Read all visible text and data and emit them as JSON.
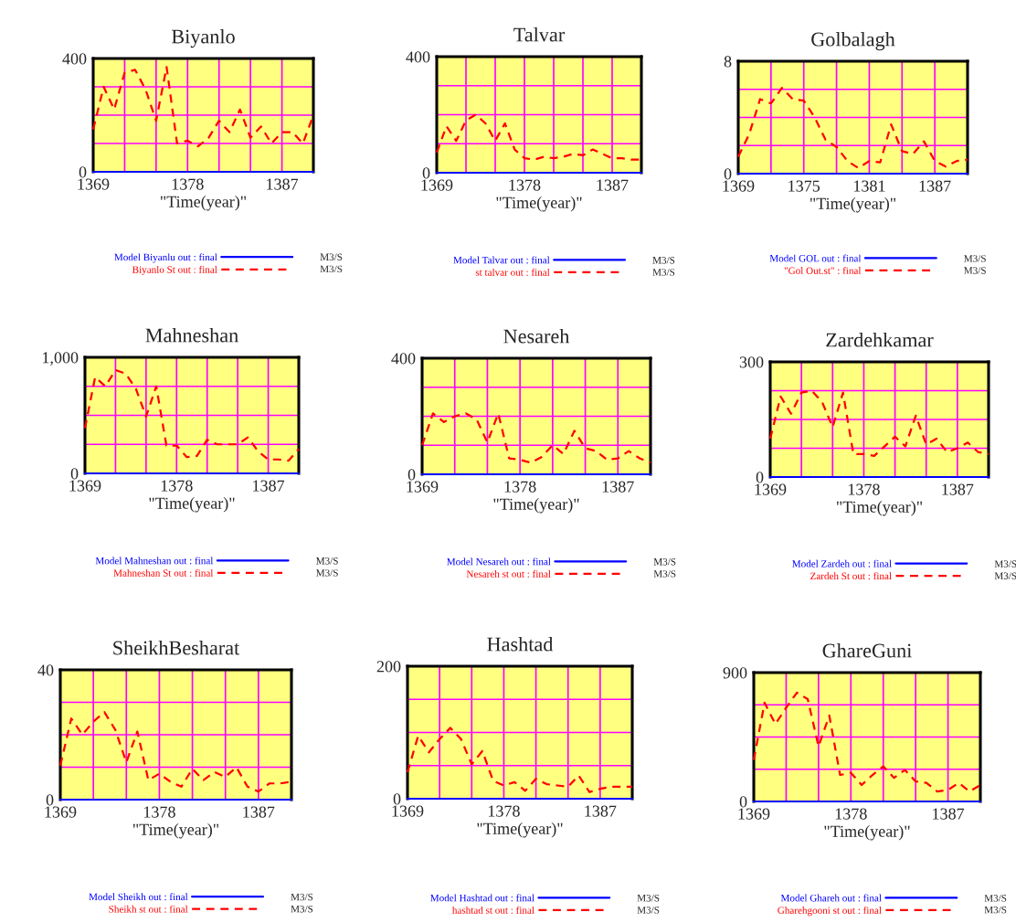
{
  "chart_data": [
    {
      "type": "line",
      "title": "Biyanlo",
      "xlabel": "\"Time(year)\"",
      "legend": "bottom",
      "grid": true,
      "xlim": [
        1369,
        1390
      ],
      "ylim": [
        0,
        400
      ],
      "xticks": [
        1369,
        {
          "value": 1372,
          "label": null
        },
        {
          "value": 1375,
          "label": null
        },
        1378,
        {
          "value": 1381,
          "label": null
        },
        {
          "value": 1384,
          "label": null
        },
        1387,
        {
          "value": 1390,
          "label": null
        }
      ],
      "yticks": [
        0,
        {
          "value": 100,
          "label": null
        },
        {
          "value": 200,
          "label": null
        },
        {
          "value": 300,
          "label": null
        },
        400
      ],
      "x": [
        1369,
        1370,
        1371,
        1372,
        1373,
        1374,
        1375,
        1376,
        1377,
        1378,
        1379,
        1380,
        1381,
        1382,
        1383,
        1384,
        1385,
        1386,
        1387,
        1388,
        1389,
        1390
      ],
      "series": [
        {
          "name": "Model Biyanlu out : final",
          "color": "#0000ff",
          "line_style": "solid",
          "values": [
            0,
            0,
            0,
            0,
            0,
            0,
            0,
            0,
            0,
            0,
            0,
            0,
            0,
            0,
            0,
            0,
            0,
            0,
            0,
            0,
            0,
            0
          ]
        },
        {
          "name": "Biyanlo St out : final",
          "color": "#ff0000",
          "line_style": "dashed",
          "values": [
            150,
            300,
            220,
            350,
            360,
            290,
            180,
            370,
            100,
            110,
            90,
            120,
            180,
            140,
            220,
            120,
            160,
            100,
            140,
            140,
            100,
            200
          ]
        }
      ],
      "annotations": [
        "M3/S",
        "M3/S"
      ]
    },
    {
      "type": "line",
      "title": "Talvar",
      "xlabel": "\"Time(year)\"",
      "legend": "bottom",
      "grid": true,
      "xlim": [
        1369,
        1390
      ],
      "ylim": [
        0,
        400
      ],
      "xticks": [
        1369,
        {
          "value": 1372,
          "label": null
        },
        {
          "value": 1375,
          "label": null
        },
        1378,
        {
          "value": 1381,
          "label": null
        },
        {
          "value": 1384,
          "label": null
        },
        1387,
        {
          "value": 1390,
          "label": null
        }
      ],
      "yticks": [
        0,
        {
          "value": 100,
          "label": null
        },
        {
          "value": 200,
          "label": null
        },
        {
          "value": 300,
          "label": null
        },
        400
      ],
      "x": [
        1369,
        1370,
        1371,
        1372,
        1373,
        1374,
        1375,
        1376,
        1377,
        1378,
        1379,
        1380,
        1381,
        1382,
        1383,
        1384,
        1385,
        1386,
        1387,
        1388,
        1389,
        1390
      ],
      "series": [
        {
          "name": "Model Talvar out : final",
          "color": "#0000ff",
          "line_style": "solid",
          "values": [
            0,
            0,
            0,
            0,
            0,
            0,
            0,
            0,
            0,
            0,
            0,
            0,
            0,
            0,
            0,
            0,
            0,
            0,
            0,
            0,
            0,
            0
          ]
        },
        {
          "name": "st talvar out : final",
          "color": "#ff0000",
          "line_style": "dashed",
          "values": [
            70,
            160,
            110,
            180,
            200,
            170,
            110,
            170,
            80,
            50,
            45,
            55,
            50,
            55,
            65,
            60,
            80,
            65,
            50,
            50,
            45,
            45
          ]
        }
      ],
      "annotations": [
        "M3/S",
        "M3/S"
      ]
    },
    {
      "type": "line",
      "title": "Golbalagh",
      "xlabel": "\"Time(year)\"",
      "legend": "bottom",
      "grid": true,
      "xlim": [
        1369,
        1390
      ],
      "ylim": [
        0,
        8
      ],
      "xticks": [
        1369,
        {
          "value": 1372,
          "label": null
        },
        1375,
        {
          "value": 1378,
          "label": null
        },
        1381,
        {
          "value": 1384,
          "label": null
        },
        1387,
        {
          "value": 1390,
          "label": null
        }
      ],
      "yticks": [
        0,
        {
          "value": 2,
          "label": null
        },
        {
          "value": 4,
          "label": null
        },
        {
          "value": 6,
          "label": null
        },
        8
      ],
      "x": [
        1369,
        1370,
        1371,
        1372,
        1373,
        1374,
        1375,
        1376,
        1377,
        1378,
        1379,
        1380,
        1381,
        1382,
        1383,
        1384,
        1385,
        1386,
        1387,
        1388,
        1389,
        1390
      ],
      "series": [
        {
          "name": "Model GOL out : final",
          "color": "#0000ff",
          "line_style": "solid",
          "values": [
            0,
            0,
            0,
            0,
            0,
            0,
            0,
            0,
            0,
            0,
            0,
            0,
            0,
            0,
            0,
            0,
            0,
            0,
            0,
            0,
            0,
            0
          ]
        },
        {
          "name": "\"Gol Out.st\" : final",
          "color": "#ff0000",
          "line_style": "dashed",
          "values": [
            1.2,
            2.8,
            5.3,
            5.0,
            6.1,
            5.3,
            5.2,
            4.0,
            2.4,
            1.9,
            0.9,
            0.4,
            0.9,
            0.8,
            3.5,
            1.6,
            1.4,
            2.3,
            0.9,
            0.5,
            0.9,
            1.0
          ]
        }
      ],
      "annotations": [
        "M3/S",
        "M3/S"
      ]
    },
    {
      "type": "line",
      "title": "Mahneshan",
      "xlabel": "\"Time(year)\"",
      "legend": "bottom",
      "grid": true,
      "xlim": [
        1369,
        1390
      ],
      "ylim": [
        0,
        1000
      ],
      "xticks": [
        1369,
        {
          "value": 1372,
          "label": null
        },
        {
          "value": 1375,
          "label": null
        },
        1378,
        {
          "value": 1381,
          "label": null
        },
        {
          "value": 1384,
          "label": null
        },
        1387,
        {
          "value": 1390,
          "label": null
        }
      ],
      "yticks": [
        0,
        {
          "value": 250,
          "label": null
        },
        {
          "value": 500,
          "label": null
        },
        {
          "value": 750,
          "label": null
        },
        {
          "value": 1000,
          "label": "1,000"
        }
      ],
      "x": [
        1369,
        1370,
        1371,
        1372,
        1373,
        1374,
        1375,
        1376,
        1377,
        1378,
        1379,
        1380,
        1381,
        1382,
        1383,
        1384,
        1385,
        1386,
        1387,
        1388,
        1389,
        1390
      ],
      "series": [
        {
          "name": "Model Mahneshan out : final",
          "color": "#0000ff",
          "line_style": "solid",
          "values": [
            0,
            0,
            0,
            0,
            0,
            0,
            0,
            0,
            0,
            0,
            0,
            0,
            0,
            0,
            0,
            0,
            0,
            0,
            0,
            0,
            0,
            0
          ]
        },
        {
          "name": "Mahneshan St out : final",
          "color": "#ff0000",
          "line_style": "dashed",
          "values": [
            390,
            830,
            750,
            890,
            860,
            730,
            490,
            750,
            240,
            240,
            140,
            150,
            290,
            250,
            250,
            250,
            310,
            190,
            120,
            120,
            110,
            210
          ]
        }
      ],
      "annotations": [
        "M3/S",
        "M3/S"
      ]
    },
    {
      "type": "line",
      "title": "Nesareh",
      "xlabel": "\"Time(year)\"",
      "legend": "bottom",
      "grid": true,
      "xlim": [
        1369,
        1390
      ],
      "ylim": [
        0,
        400
      ],
      "xticks": [
        1369,
        {
          "value": 1372,
          "label": null
        },
        {
          "value": 1375,
          "label": null
        },
        1378,
        {
          "value": 1381,
          "label": null
        },
        {
          "value": 1384,
          "label": null
        },
        1387,
        {
          "value": 1390,
          "label": null
        }
      ],
      "yticks": [
        0,
        {
          "value": 100,
          "label": null
        },
        {
          "value": 200,
          "label": null
        },
        {
          "value": 300,
          "label": null
        },
        400
      ],
      "x": [
        1369,
        1370,
        1371,
        1372,
        1373,
        1374,
        1375,
        1376,
        1377,
        1378,
        1379,
        1380,
        1381,
        1382,
        1383,
        1384,
        1385,
        1386,
        1387,
        1388,
        1389,
        1390
      ],
      "series": [
        {
          "name": "Model Nesareh out : final",
          "color": "#0000ff",
          "line_style": "solid",
          "values": [
            0,
            0,
            0,
            0,
            0,
            0,
            0,
            0,
            0,
            0,
            0,
            0,
            0,
            0,
            0,
            0,
            0,
            0,
            0,
            0,
            0,
            0
          ]
        },
        {
          "name": "Nesareh st out : final",
          "color": "#ff0000",
          "line_style": "dashed",
          "values": [
            100,
            210,
            180,
            200,
            210,
            190,
            110,
            210,
            55,
            50,
            40,
            60,
            100,
            70,
            150,
            90,
            80,
            50,
            55,
            80,
            55,
            40
          ]
        }
      ],
      "annotations": [
        "M3/S",
        "M3/S"
      ]
    },
    {
      "type": "line",
      "title": "Zardehkamar",
      "xlabel": "\"Time(year)\"",
      "legend": "bottom",
      "grid": true,
      "xlim": [
        1369,
        1390
      ],
      "ylim": [
        0,
        300
      ],
      "xticks": [
        1369,
        {
          "value": 1372,
          "label": null
        },
        {
          "value": 1375,
          "label": null
        },
        1378,
        {
          "value": 1381,
          "label": null
        },
        {
          "value": 1384,
          "label": null
        },
        1387,
        {
          "value": 1390,
          "label": null
        }
      ],
      "yticks": [
        0,
        {
          "value": 75,
          "label": null
        },
        {
          "value": 150,
          "label": null
        },
        {
          "value": 225,
          "label": null
        },
        300
      ],
      "x": [
        1369,
        1370,
        1371,
        1372,
        1373,
        1374,
        1375,
        1376,
        1377,
        1378,
        1379,
        1380,
        1381,
        1382,
        1383,
        1384,
        1385,
        1386,
        1387,
        1388,
        1389,
        1390
      ],
      "series": [
        {
          "name": "Model Zardeh out : final",
          "color": "#0000ff",
          "line_style": "solid",
          "values": [
            0,
            0,
            0,
            0,
            0,
            0,
            0,
            0,
            0,
            0,
            0,
            0,
            0,
            0,
            0,
            0,
            0,
            0,
            0,
            0,
            0,
            0
          ]
        },
        {
          "name": "Zardeh St out : final",
          "color": "#ff0000",
          "line_style": "dashed",
          "values": [
            100,
            210,
            165,
            220,
            225,
            195,
            130,
            220,
            60,
            60,
            55,
            80,
            105,
            80,
            160,
            85,
            100,
            65,
            75,
            90,
            65,
            60
          ]
        }
      ],
      "annotations": [
        "M3/S",
        "M3/S"
      ]
    },
    {
      "type": "line",
      "title": "SheikhBesharat",
      "xlabel": "\"Time(year)\"",
      "legend": "bottom",
      "grid": true,
      "xlim": [
        1369,
        1390
      ],
      "ylim": [
        0,
        40
      ],
      "xticks": [
        1369,
        {
          "value": 1372,
          "label": null
        },
        {
          "value": 1375,
          "label": null
        },
        1378,
        {
          "value": 1381,
          "label": null
        },
        {
          "value": 1384,
          "label": null
        },
        1387,
        {
          "value": 1390,
          "label": null
        }
      ],
      "yticks": [
        0,
        {
          "value": 10,
          "label": null
        },
        {
          "value": 20,
          "label": null
        },
        {
          "value": 30,
          "label": null
        },
        40
      ],
      "x": [
        1369,
        1370,
        1371,
        1372,
        1373,
        1374,
        1375,
        1376,
        1377,
        1378,
        1379,
        1380,
        1381,
        1382,
        1383,
        1384,
        1385,
        1386,
        1387,
        1388,
        1389,
        1390
      ],
      "series": [
        {
          "name": "Model Sheikh out : final",
          "color": "#0000ff",
          "line_style": "solid",
          "values": [
            0,
            0,
            0,
            0,
            0,
            0,
            0,
            0,
            0,
            0,
            0,
            0,
            0,
            0,
            0,
            0,
            0,
            0,
            0,
            0,
            0,
            0
          ]
        },
        {
          "name": "Sheikh st out : final",
          "color": "#ff0000",
          "line_style": "dashed",
          "values": [
            10.5,
            25,
            20,
            24,
            27,
            21.5,
            11.5,
            21,
            6,
            8,
            5.5,
            4,
            9.5,
            6,
            8.5,
            7,
            10,
            4,
            2.5,
            5,
            5,
            5.5
          ]
        }
      ],
      "annotations": [
        "M3/S",
        "M3/S"
      ]
    },
    {
      "type": "line",
      "title": "Hashtad",
      "xlabel": "\"Time(year)\"",
      "legend": "bottom",
      "grid": true,
      "xlim": [
        1369,
        1390
      ],
      "ylim": [
        0,
        200
      ],
      "xticks": [
        1369,
        {
          "value": 1372,
          "label": null
        },
        {
          "value": 1375,
          "label": null
        },
        1378,
        {
          "value": 1381,
          "label": null
        },
        {
          "value": 1384,
          "label": null
        },
        1387,
        {
          "value": 1390,
          "label": null
        }
      ],
      "yticks": [
        0,
        {
          "value": 50,
          "label": null
        },
        {
          "value": 100,
          "label": null
        },
        {
          "value": 150,
          "label": null
        },
        200
      ],
      "x": [
        1369,
        1370,
        1371,
        1372,
        1373,
        1374,
        1375,
        1376,
        1377,
        1378,
        1379,
        1380,
        1381,
        1382,
        1383,
        1384,
        1385,
        1386,
        1387,
        1388,
        1389,
        1390
      ],
      "series": [
        {
          "name": "Model Hashtad out : final",
          "color": "#0000ff",
          "line_style": "solid",
          "values": [
            0,
            0,
            0,
            0,
            0,
            0,
            0,
            0,
            0,
            0,
            0,
            0,
            0,
            0,
            0,
            0,
            0,
            0,
            0,
            0,
            0,
            0
          ]
        },
        {
          "name": "hashtad st out : final",
          "color": "#ff0000",
          "line_style": "dashed",
          "values": [
            40,
            95,
            70,
            90,
            107,
            90,
            52,
            72,
            27,
            20,
            25,
            12,
            30,
            22,
            20,
            18,
            35,
            10,
            15,
            18,
            18,
            18
          ]
        }
      ],
      "annotations": [
        "M3/S",
        "M3/S"
      ]
    },
    {
      "type": "line",
      "title": "GhareGuni",
      "xlabel": "\"Time(year)\"",
      "legend": "bottom",
      "grid": true,
      "xlim": [
        1369,
        1390
      ],
      "ylim": [
        0,
        900
      ],
      "xticks": [
        1369,
        {
          "value": 1372,
          "label": null
        },
        {
          "value": 1375,
          "label": null
        },
        1378,
        {
          "value": 1381,
          "label": null
        },
        {
          "value": 1384,
          "label": null
        },
        1387,
        {
          "value": 1390,
          "label": null
        }
      ],
      "yticks": [
        0,
        {
          "value": 225,
          "label": null
        },
        {
          "value": 450,
          "label": null
        },
        {
          "value": 675,
          "label": null
        },
        900
      ],
      "x": [
        1369,
        1370,
        1371,
        1372,
        1373,
        1374,
        1375,
        1376,
        1377,
        1378,
        1379,
        1380,
        1381,
        1382,
        1383,
        1384,
        1385,
        1386,
        1387,
        1388,
        1389,
        1390
      ],
      "series": [
        {
          "name": "Model Ghareh out : final",
          "color": "#0000ff",
          "line_style": "solid",
          "values": [
            0,
            0,
            0,
            0,
            0,
            0,
            0,
            0,
            0,
            0,
            0,
            0,
            0,
            0,
            0,
            0,
            0,
            0,
            0,
            0,
            0,
            0
          ]
        },
        {
          "name": "Gharehgooni st out : final",
          "color": "#ff0000",
          "line_style": "dashed",
          "values": [
            290,
            690,
            540,
            655,
            760,
            715,
            385,
            600,
            185,
            200,
            115,
            185,
            245,
            165,
            220,
            140,
            130,
            70,
            80,
            130,
            70,
            115
          ]
        }
      ],
      "annotations": [
        "M3/S",
        "M3/S"
      ]
    }
  ]
}
